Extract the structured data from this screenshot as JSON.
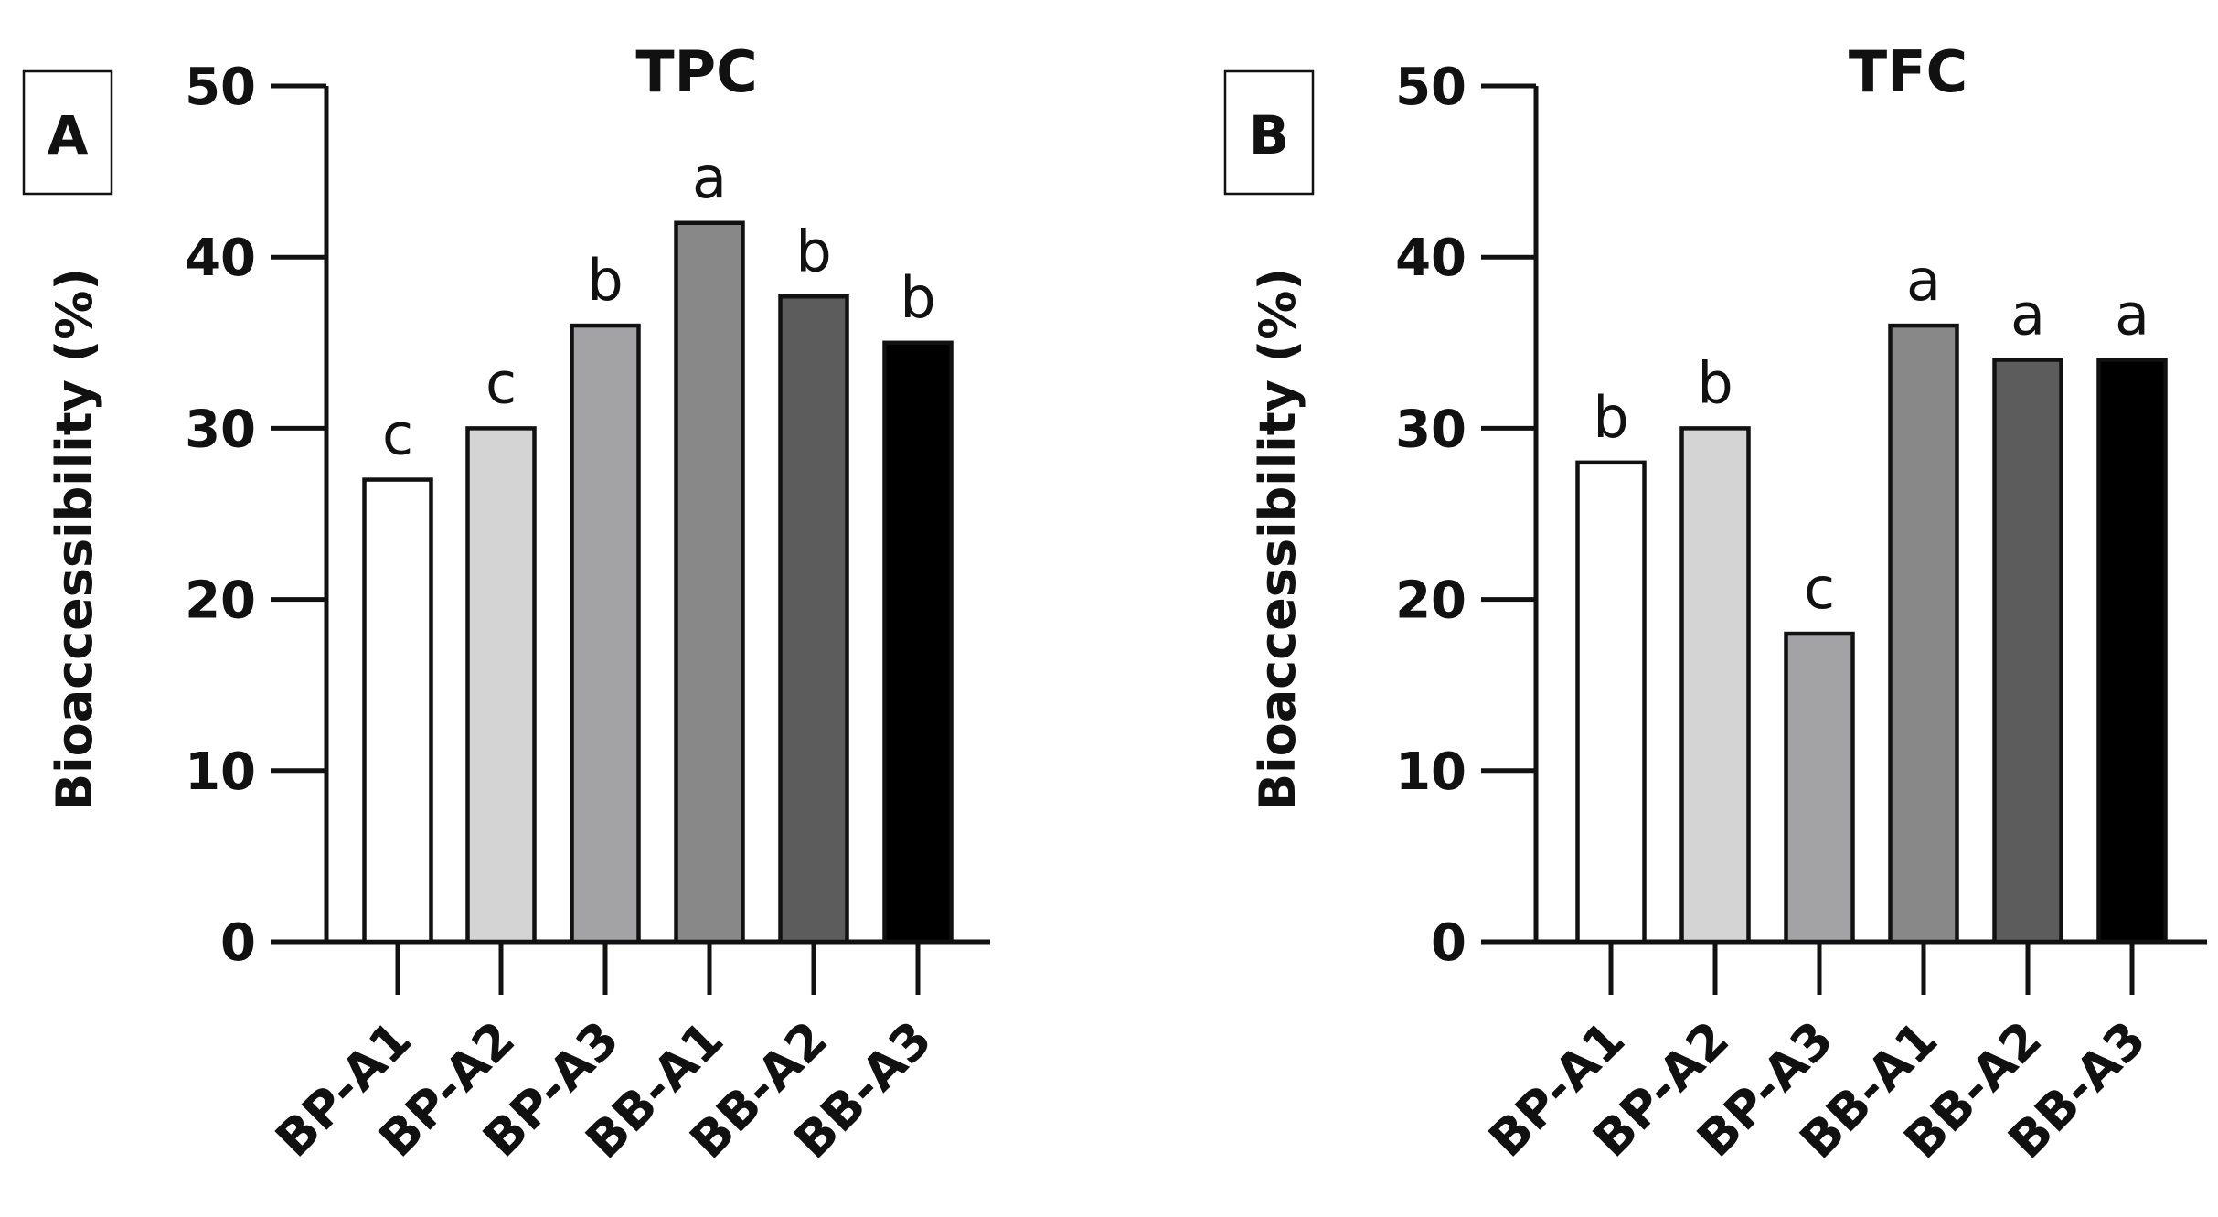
{
  "chart_data": [
    {
      "panel_label": "A",
      "type": "bar",
      "title": "TPC",
      "ylabel": "Bioaccessibility (%)",
      "xlabel": "",
      "ylim": [
        0,
        50
      ],
      "yticks": [
        "0",
        "10",
        "20",
        "30",
        "40",
        "50"
      ],
      "categories": [
        "BP-A1",
        "BP-A2",
        "BP-A3",
        "BB-A1",
        "BB-A2",
        "BB-A3"
      ],
      "values": [
        27,
        30,
        36,
        42,
        37.7,
        35
      ],
      "significance": [
        "c",
        "c",
        "b",
        "a",
        "b",
        "b"
      ],
      "colors": [
        "#ffffff",
        "#d4d4d4",
        "#a3a3a6",
        "#888888",
        "#5c5c5c",
        "#000000"
      ]
    },
    {
      "panel_label": "B",
      "type": "bar",
      "title": "TFC",
      "ylabel": "Bioaccessibility (%)",
      "xlabel": "",
      "ylim": [
        0,
        50
      ],
      "yticks": [
        "0",
        "10",
        "20",
        "30",
        "40",
        "50"
      ],
      "categories": [
        "BP-A1",
        "BP-A2",
        "BP-A3",
        "BB-A1",
        "BB-A2",
        "BB-A3"
      ],
      "values": [
        28,
        30,
        18,
        36,
        34,
        34
      ],
      "significance": [
        "b",
        "b",
        "c",
        "a",
        "a",
        "a"
      ],
      "colors": [
        "#ffffff",
        "#d4d4d4",
        "#a3a3a6",
        "#888888",
        "#5c5c5c",
        "#000000"
      ]
    }
  ]
}
